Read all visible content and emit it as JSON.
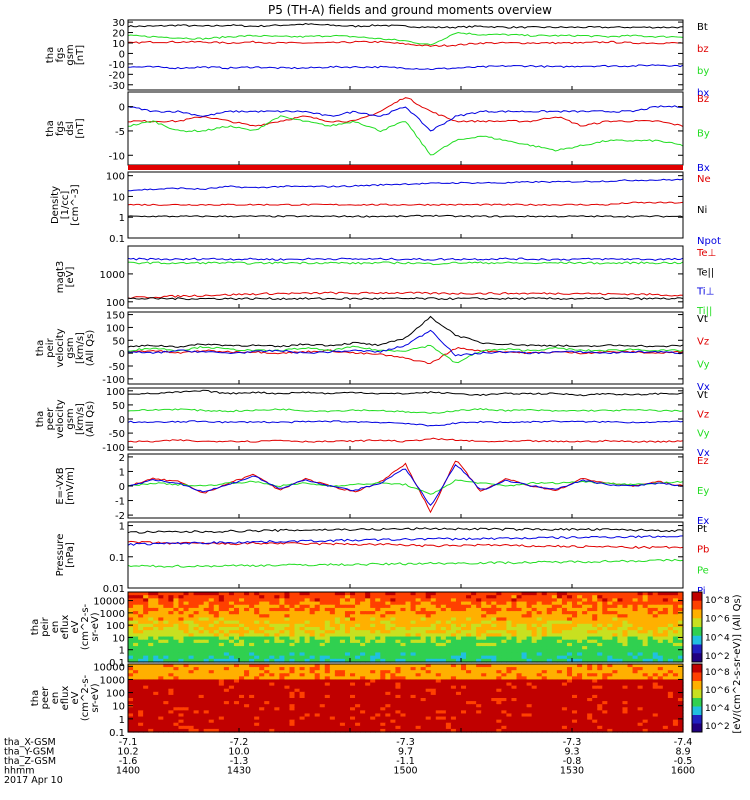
{
  "title": "P5 (TH-A) fields and ground moments overview",
  "footer": {
    "rows": [
      {
        "label": "tha_X-GSM",
        "values": [
          "-7.1",
          "-7.2",
          "-7.3",
          "-7.3",
          "-7.4"
        ]
      },
      {
        "label": "tha_Y-GSM",
        "values": [
          "10.2",
          "10.0",
          "9.7",
          "9.3",
          "8.9"
        ]
      },
      {
        "label": "tha_Z-GSM",
        "values": [
          "-1.6",
          "-1.3",
          "-1.1",
          "-0.8",
          "-0.5"
        ]
      },
      {
        "label": "hhmm",
        "values": [
          "1400",
          "1430",
          "1500",
          "1530",
          "1600"
        ]
      }
    ],
    "date": "2017 Apr 10"
  },
  "colors": {
    "black": "#000000",
    "red": "#e00000",
    "green": "#22dd22",
    "blue": "#0000e0"
  },
  "colorbar_label": "[eV/(cm^2-s-sr-eV)] (All Qs)",
  "chart_data": [
    {
      "type": "line",
      "panel": "fgs_gsm",
      "ylabel_lines": [
        "tha",
        "fgs",
        "gsm",
        "[nT]"
      ],
      "ylim": [
        -35,
        32
      ],
      "ticks": [
        30,
        20,
        10,
        0,
        -10,
        -20,
        -30
      ],
      "series": [
        {
          "name": "Bt",
          "color": "#000000",
          "values": [
            26,
            26,
            27,
            26,
            27,
            26,
            27,
            28,
            27,
            26,
            27,
            26,
            25,
            25,
            26,
            25,
            25,
            25,
            25,
            25,
            25,
            25,
            25
          ]
        },
        {
          "name": "bz",
          "color": "#e00000",
          "values": [
            10,
            11,
            11,
            11,
            10,
            11,
            10,
            10,
            10,
            11,
            11,
            9,
            7,
            8,
            10,
            10,
            10,
            10,
            10,
            11,
            10,
            10,
            10
          ]
        },
        {
          "name": "by",
          "color": "#22dd22",
          "values": [
            17,
            16,
            15,
            14,
            16,
            17,
            16,
            16,
            17,
            16,
            14,
            12,
            8,
            20,
            18,
            18,
            17,
            17,
            17,
            16,
            17,
            16,
            16
          ]
        },
        {
          "name": "bx",
          "color": "#0000e0",
          "values": [
            -13,
            -13,
            -14,
            -13,
            -14,
            -13,
            -14,
            -14,
            -13,
            -13,
            -13,
            -14,
            -15,
            -14,
            -13,
            -12,
            -12,
            -13,
            -12,
            -12,
            -12,
            -11,
            -12
          ]
        }
      ]
    },
    {
      "type": "line",
      "panel": "fgs_dsl",
      "ylabel_lines": [
        "tha",
        "fgs",
        "dsl",
        "[nT]"
      ],
      "ylim": [
        -12,
        3
      ],
      "ticks": [
        0,
        -5,
        -10
      ],
      "series": [
        {
          "name": "Bz",
          "color": "#e00000",
          "values": [
            -3,
            -3,
            -3,
            -2,
            -3,
            -4,
            -3,
            -2,
            -3,
            -3,
            -1,
            2,
            -1,
            -3,
            -3,
            -3,
            -3,
            -2,
            -4,
            -3,
            -3,
            -3,
            -4
          ]
        },
        {
          "name": "By",
          "color": "#22dd22",
          "values": [
            -4,
            -3,
            -5,
            -5,
            -4,
            -5,
            -2,
            -3,
            -4,
            -3,
            -5,
            -3,
            -10,
            -7,
            -6,
            -7,
            -8,
            -9,
            -8,
            -7,
            -7,
            -7,
            -8
          ]
        },
        {
          "name": "Bx",
          "color": "#0000e0",
          "values": [
            0,
            -1,
            -1,
            -2,
            -1,
            -1,
            -1,
            -1,
            -2,
            -1,
            -2,
            0,
            -5,
            -2,
            -1,
            -1,
            -1,
            -1,
            -1,
            -1,
            -1,
            0,
            0
          ]
        }
      ]
    },
    {
      "type": "line",
      "panel": "density",
      "ylabel_lines": [
        "Density",
        "[1/cc]",
        "[cm^-3]"
      ],
      "scale": "log",
      "ylim": [
        0.1,
        150
      ],
      "ticks": [
        100.0,
        10.0,
        1.0,
        0.1
      ],
      "series": [
        {
          "name": "Ne",
          "color": "#e00000",
          "values": [
            4,
            4,
            4,
            4,
            4,
            4,
            4,
            4,
            4,
            4,
            4,
            4,
            4,
            4,
            4,
            4,
            4,
            4,
            4,
            4,
            5,
            5,
            5
          ]
        },
        {
          "name": "Ni",
          "color": "#000000",
          "values": [
            1.1,
            1.1,
            1.1,
            1.1,
            1.1,
            1.1,
            1.1,
            1.1,
            1.1,
            1.1,
            1.1,
            1.1,
            1.2,
            1.1,
            1.1,
            1.1,
            1.1,
            1.1,
            1.1,
            1.1,
            1.1,
            1.1,
            1.1
          ]
        },
        {
          "name": "Npot",
          "color": "#0000e0",
          "values": [
            20,
            22,
            25,
            22,
            30,
            26,
            30,
            30,
            30,
            32,
            36,
            40,
            42,
            45,
            45,
            45,
            50,
            50,
            52,
            55,
            60,
            62,
            65
          ]
        }
      ]
    },
    {
      "type": "line",
      "panel": "temperature",
      "ylabel_lines": [
        "magt3",
        "[eV]"
      ],
      "scale": "log",
      "ylim": [
        60,
        10000
      ],
      "ticks": [
        1000,
        100
      ],
      "series": [
        {
          "name": "Te⊥",
          "color": "#e00000",
          "values": [
            140,
            150,
            160,
            170,
            180,
            190,
            200,
            200,
            210,
            200,
            210,
            210,
            200,
            200,
            200,
            200,
            200,
            200,
            200,
            190,
            190,
            180,
            170
          ]
        },
        {
          "name": "Te||",
          "color": "#000000",
          "values": [
            130,
            130,
            130,
            130,
            130,
            130,
            130,
            130,
            130,
            130,
            130,
            130,
            130,
            130,
            130,
            130,
            130,
            130,
            130,
            130,
            130,
            130,
            130
          ]
        },
        {
          "name": "Ti⊥",
          "color": "#0000e0",
          "values": [
            3400,
            3400,
            3300,
            3500,
            3400,
            3400,
            3300,
            3400,
            3500,
            3400,
            3400,
            3400,
            3300,
            3400,
            3400,
            3500,
            3400,
            3300,
            3400,
            3400,
            3400,
            3300,
            3400
          ]
        },
        {
          "name": "Ti||",
          "color": "#22dd22",
          "values": [
            2500,
            2500,
            2400,
            2500,
            2500,
            2400,
            2500,
            2500,
            2500,
            2400,
            2500,
            2500,
            2300,
            2500,
            2500,
            2500,
            2400,
            2500,
            2500,
            2400,
            2500,
            2500,
            2500
          ]
        }
      ]
    },
    {
      "type": "line",
      "panel": "peir_velocity",
      "ylabel_lines": [
        "tha",
        "peir",
        "velocity",
        "gsm",
        "[km/s]",
        "(All Qs)"
      ],
      "ylim": [
        -120,
        160
      ],
      "ticks": [
        150,
        100,
        50,
        0,
        -50,
        -100
      ],
      "series": [
        {
          "name": "Vt",
          "color": "#000000",
          "values": [
            25,
            30,
            25,
            35,
            30,
            30,
            25,
            35,
            30,
            40,
            30,
            60,
            140,
            70,
            40,
            35,
            30,
            30,
            25,
            30,
            30,
            25,
            30
          ]
        },
        {
          "name": "Vz",
          "color": "#e00000",
          "values": [
            5,
            10,
            0,
            10,
            5,
            5,
            0,
            5,
            10,
            0,
            -5,
            -20,
            -40,
            20,
            10,
            5,
            0,
            5,
            0,
            5,
            5,
            0,
            5
          ]
        },
        {
          "name": "Vy",
          "color": "#22dd22",
          "values": [
            10,
            20,
            10,
            25,
            15,
            10,
            10,
            20,
            10,
            25,
            10,
            10,
            30,
            -40,
            10,
            15,
            10,
            20,
            10,
            10,
            15,
            10,
            10
          ]
        },
        {
          "name": "Vx",
          "color": "#0000e0",
          "values": [
            5,
            0,
            10,
            5,
            0,
            5,
            10,
            0,
            5,
            10,
            5,
            30,
            90,
            -10,
            0,
            5,
            0,
            5,
            5,
            0,
            5,
            5,
            0
          ]
        }
      ]
    },
    {
      "type": "line",
      "panel": "peer_velocity",
      "ylabel_lines": [
        "tha",
        "peer",
        "velocity",
        "gsm",
        "[km/s]",
        "(All Qs)"
      ],
      "ylim": [
        -110,
        110
      ],
      "ticks": [
        100,
        50,
        0,
        -50,
        -100
      ],
      "series": [
        {
          "name": "Vt",
          "color": "#000000",
          "values": [
            90,
            90,
            95,
            100,
            90,
            95,
            90,
            95,
            90,
            95,
            90,
            90,
            95,
            90,
            85,
            90,
            90,
            90,
            85,
            90,
            85,
            90,
            90
          ]
        },
        {
          "name": "Vz",
          "color": "#e00000",
          "values": [
            -80,
            -80,
            -75,
            -80,
            -78,
            -80,
            -75,
            -80,
            -80,
            -78,
            -75,
            -80,
            -70,
            -75,
            -80,
            -80,
            -78,
            -80,
            -80,
            -78,
            -80,
            -80,
            -78
          ]
        },
        {
          "name": "Vy",
          "color": "#22dd22",
          "values": [
            30,
            32,
            35,
            30,
            28,
            30,
            35,
            30,
            28,
            32,
            30,
            25,
            20,
            30,
            35,
            30,
            32,
            28,
            30,
            30,
            32,
            30,
            28
          ]
        },
        {
          "name": "Vx",
          "color": "#0000e0",
          "values": [
            -10,
            -12,
            -10,
            -8,
            -12,
            -10,
            -12,
            -10,
            -8,
            -10,
            -12,
            -15,
            -25,
            -15,
            -10,
            -12,
            -10,
            -8,
            -10,
            -10,
            -12,
            -10,
            -10
          ]
        }
      ]
    },
    {
      "type": "line",
      "panel": "efield",
      "ylabel_lines": [
        "E=-VxB",
        "[mV/m]"
      ],
      "ylim": [
        -2.2,
        2.2
      ],
      "ticks": [
        2,
        1,
        0,
        -1,
        -2
      ],
      "series": [
        {
          "name": "Ez",
          "color": "#e00000",
          "values": [
            0,
            0.5,
            0.3,
            -0.5,
            0.2,
            0.8,
            -0.3,
            0.5,
            0,
            -0.4,
            0.3,
            1.5,
            -1.8,
            1.8,
            -0.4,
            0.5,
            0,
            -0.3,
            0.5,
            0.2,
            0,
            0.3,
            0
          ]
        },
        {
          "name": "Ey",
          "color": "#22dd22",
          "values": [
            0,
            0.2,
            0.1,
            0,
            0.2,
            0.3,
            0,
            0.2,
            0,
            0.1,
            0.2,
            0.1,
            -0.6,
            0.4,
            0.2,
            0,
            0.2,
            0.2,
            0.3,
            0.2,
            0.1,
            0.2,
            0.3
          ]
        },
        {
          "name": "Ex",
          "color": "#0000e0",
          "values": [
            0,
            0.4,
            0.2,
            -0.4,
            0.1,
            0.7,
            -0.2,
            0.4,
            0,
            -0.3,
            0.2,
            1.2,
            -1.4,
            1.5,
            -0.3,
            0.4,
            0,
            -0.2,
            0.4,
            0.1,
            0,
            0.2,
            0
          ]
        }
      ]
    },
    {
      "type": "line",
      "panel": "pressure",
      "ylabel_lines": [
        "Pressure",
        "[nPa]"
      ],
      "scale": "log",
      "ylim": [
        0.01,
        1.3
      ],
      "ticks": [
        1.0,
        0.1,
        0.01
      ],
      "series": [
        {
          "name": "Pt",
          "color": "#000000",
          "values": [
            0.6,
            0.62,
            0.63,
            0.64,
            0.66,
            0.68,
            0.7,
            0.72,
            0.74,
            0.75,
            0.76,
            0.78,
            0.8,
            0.78,
            0.78,
            0.76,
            0.76,
            0.76,
            0.75,
            0.74,
            0.72,
            0.7,
            0.68
          ]
        },
        {
          "name": "Pb",
          "color": "#e00000",
          "values": [
            0.3,
            0.28,
            0.27,
            0.27,
            0.26,
            0.27,
            0.27,
            0.26,
            0.26,
            0.25,
            0.25,
            0.24,
            0.22,
            0.23,
            0.24,
            0.23,
            0.22,
            0.22,
            0.21,
            0.21,
            0.2,
            0.2,
            0.2
          ]
        },
        {
          "name": "Pe",
          "color": "#22dd22",
          "values": [
            0.05,
            0.05,
            0.05,
            0.05,
            0.052,
            0.053,
            0.054,
            0.055,
            0.056,
            0.057,
            0.058,
            0.06,
            0.062,
            0.062,
            0.064,
            0.065,
            0.066,
            0.068,
            0.07,
            0.072,
            0.074,
            0.076,
            0.078
          ]
        },
        {
          "name": "Pi",
          "color": "#0000e0",
          "values": [
            0.25,
            0.26,
            0.27,
            0.28,
            0.29,
            0.3,
            0.31,
            0.32,
            0.33,
            0.34,
            0.35,
            0.36,
            0.38,
            0.37,
            0.38,
            0.39,
            0.4,
            0.41,
            0.42,
            0.43,
            0.44,
            0.45,
            0.45
          ]
        }
      ]
    },
    {
      "type": "heatmap",
      "panel": "peir_en_eflux",
      "ylabel_lines": [
        "tha",
        "peir",
        "en",
        "eflux",
        "eV",
        "(cm^2-s-",
        "sr-eV)"
      ],
      "scale": "log",
      "ylim": [
        0.1,
        50000
      ],
      "ticks": [
        10000.0,
        1000.0,
        100.0,
        10.0,
        1.0,
        0.1
      ],
      "colorbar": {
        "ticks": [
          "10^8",
          "10^6",
          "10^4",
          "10^2"
        ],
        "scale": "log"
      }
    },
    {
      "type": "heatmap",
      "panel": "peer_en_eflux",
      "ylabel_lines": [
        "tha",
        "peer",
        "en",
        "eflux",
        "eV",
        "(cm^2-s-",
        "sr-eV)"
      ],
      "scale": "log",
      "ylim": [
        0.1,
        15000
      ],
      "ticks": [
        10000.0,
        1000.0,
        100.0,
        10.0,
        1.0,
        0.1
      ],
      "colorbar": {
        "ticks": [
          "10^8",
          "10^6",
          "10^4",
          "10^2"
        ],
        "scale": "log"
      }
    }
  ]
}
